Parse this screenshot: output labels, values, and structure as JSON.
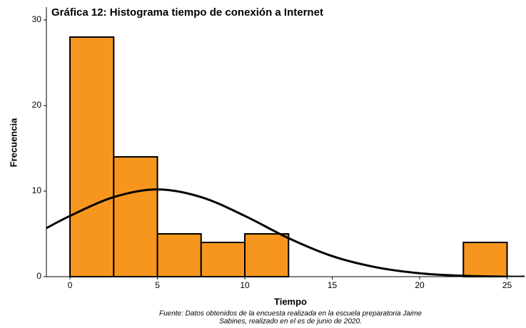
{
  "chart_data": {
    "type": "histogram",
    "title": "Gráfica 12: Histograma tiempo de conexión a Internet",
    "x_label": "Tiempo",
    "y_label": "Frecuencia",
    "bins": [
      0,
      2.5,
      5,
      7.5,
      10,
      12.5,
      15,
      17.5,
      20,
      22.5,
      25
    ],
    "values": [
      28,
      14,
      5,
      4,
      5,
      0,
      0,
      0,
      0,
      4
    ],
    "color": "#f7961e",
    "curve": {
      "x": [
        -1.5,
        0,
        2.5,
        5,
        7.5,
        10,
        12.5,
        15,
        17.5,
        20,
        22.5,
        25,
        26
      ],
      "values": [
        5.5,
        7.1,
        9.3,
        10.2,
        9.3,
        7.1,
        4.5,
        2.4,
        1.1,
        0.4,
        0.1,
        0.0,
        0.0
      ],
      "color": "#000000"
    },
    "xlim": [
      -1.35,
      26
    ],
    "ylim": [
      0,
      31.5
    ],
    "xticks": [
      0,
      5,
      10,
      15,
      20,
      25
    ],
    "yticks": [
      0,
      10,
      20,
      30
    ],
    "note": [
      "Fuente: Datos obtenidos de la encuesta realizada en la escuela preparatoria Jaime",
      "Sabines, realizado en el es de junio de 2020."
    ]
  }
}
